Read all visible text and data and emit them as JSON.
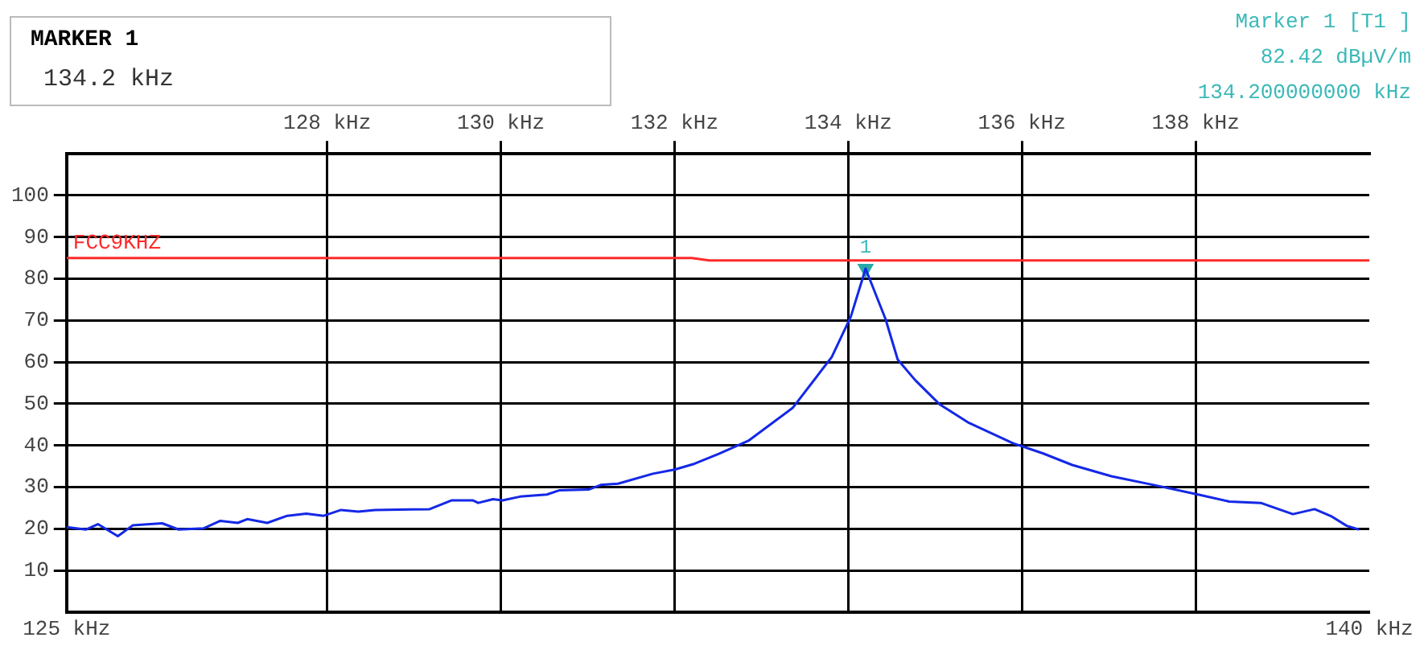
{
  "chart_data": {
    "type": "line",
    "xlim": [
      125,
      140
    ],
    "ylim": [
      0,
      110
    ],
    "xticks": [
      {
        "value": 125,
        "label": "125 kHz"
      },
      {
        "value": 140,
        "label": "140 kHz"
      }
    ],
    "x2lim": [
      125,
      140
    ],
    "x2ticks": [
      {
        "value": 128,
        "label": "128 kHz"
      },
      {
        "value": 130,
        "label": "130 kHz"
      },
      {
        "value": 132,
        "label": "132 kHz"
      },
      {
        "value": 134,
        "label": "134 kHz"
      },
      {
        "value": 136,
        "label": "136 kHz"
      },
      {
        "value": 138,
        "label": "138 kHz"
      }
    ],
    "yticks": [
      10,
      20,
      30,
      40,
      50,
      60,
      70,
      80,
      90,
      100
    ],
    "grid": true,
    "legend": false,
    "line_style": "solid",
    "series": [
      {
        "color": "#1428e6",
        "marker": "none",
        "x": [
          125.0,
          125.22,
          125.36,
          125.59,
          125.76,
          126.1,
          126.29,
          126.58,
          126.77,
          126.97,
          127.08,
          127.31,
          127.54,
          127.76,
          127.96,
          128.16,
          128.36,
          128.55,
          129.18,
          129.43,
          129.68,
          129.74,
          129.91,
          130.02,
          130.22,
          130.53,
          130.67,
          131.01,
          131.15,
          131.35,
          131.75,
          132.0,
          132.23,
          132.51,
          132.85,
          133.36,
          133.81,
          134.03,
          134.2,
          134.43,
          134.57,
          134.77,
          135.05,
          135.39,
          135.9,
          136.24,
          136.58,
          137.03,
          137.54,
          138.05,
          138.39,
          138.75,
          139.12,
          139.37,
          139.57,
          139.74,
          139.88
        ],
        "values": [
          20.4,
          19.8,
          21.1,
          18.2,
          20.8,
          21.3,
          19.8,
          20.1,
          21.9,
          21.4,
          22.3,
          21.4,
          23.1,
          23.6,
          23.1,
          24.5,
          24.1,
          24.5,
          24.7,
          26.8,
          26.8,
          26.2,
          27.1,
          26.8,
          27.7,
          28.2,
          29.2,
          29.4,
          30.5,
          30.8,
          33.2,
          34.2,
          35.6,
          38.0,
          41.1,
          49.0,
          61.2,
          70.9,
          82.42,
          70.3,
          60.6,
          55.7,
          49.9,
          45.4,
          40.5,
          38.1,
          35.3,
          32.6,
          30.4,
          28.1,
          26.5,
          26.2,
          23.5,
          24.7,
          22.9,
          20.7,
          19.8
        ]
      },
      {
        "name": "FCC9KHZ",
        "color": "#ff2a2a",
        "marker": "none",
        "x": [
          125,
          132.2,
          132.4,
          140
        ],
        "values": [
          85,
          85,
          84.4,
          84.4
        ]
      },
      {
        "type": "scatter",
        "color": "#2aa8a8",
        "marker": "triangle",
        "x": [
          134.2
        ],
        "values": [
          82.42
        ]
      }
    ],
    "annotations": [
      "MARKER 1",
      "134.2 kHz",
      "Marker 1 [T1 ]",
      "82.42 dBµV/m",
      "134.200000000 kHz",
      {
        "text": "1",
        "x": 134.2,
        "y": 82.42
      }
    ]
  }
}
